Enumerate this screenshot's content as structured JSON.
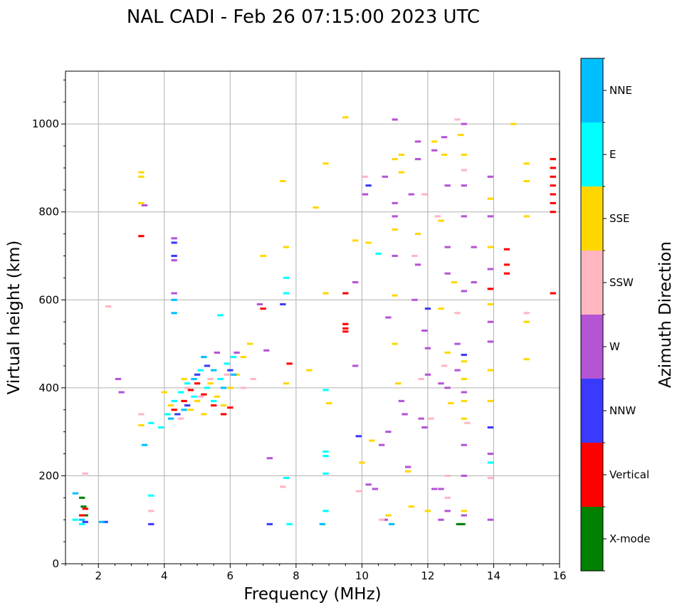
{
  "colors": {
    "X-mode": "#008000",
    "Vertical": "#ff0000",
    "NNW": "#3a3aff",
    "W": "#b455d6",
    "SSW": "#ffb6c1",
    "SSE": "#ffd700",
    "E": "#00ffff",
    "NNE": "#00bfff"
  },
  "chart_data": {
    "type": "scatter",
    "title": "NAL CADI - Feb 26 07:15:00 2023 UTC",
    "xlabel": "Frequency (MHz)",
    "ylabel": "Virtual height (km)",
    "xlim": [
      1,
      16
    ],
    "ylim": [
      0,
      1120
    ],
    "xticks": [
      2,
      4,
      6,
      8,
      10,
      12,
      14,
      16
    ],
    "yticks": [
      0,
      200,
      400,
      600,
      800,
      1000
    ],
    "grid": true,
    "colorbar": {
      "label": "Azimuth Direction",
      "categories": [
        "X-mode",
        "Vertical",
        "NNW",
        "W",
        "SSW",
        "SSE",
        "E",
        "NNE"
      ]
    },
    "series": [
      {
        "name": "X-mode",
        "points": [
          [
            1.5,
            150
          ],
          [
            1.55,
            130
          ],
          [
            1.6,
            110
          ],
          [
            12.95,
            90
          ],
          [
            13.05,
            90
          ]
        ]
      },
      {
        "name": "Vertical",
        "points": [
          [
            1.5,
            110
          ],
          [
            1.6,
            125
          ],
          [
            3.3,
            745
          ],
          [
            4.3,
            350
          ],
          [
            4.6,
            370
          ],
          [
            4.8,
            395
          ],
          [
            5.0,
            410
          ],
          [
            5.2,
            385
          ],
          [
            5.5,
            360
          ],
          [
            5.8,
            340
          ],
          [
            6.0,
            355
          ],
          [
            7.0,
            580
          ],
          [
            7.8,
            455
          ],
          [
            9.5,
            615
          ],
          [
            9.5,
            545
          ],
          [
            9.5,
            535
          ],
          [
            9.5,
            528
          ],
          [
            13.9,
            625
          ],
          [
            14.4,
            715
          ],
          [
            14.4,
            680
          ],
          [
            14.4,
            660
          ],
          [
            15.8,
            920
          ],
          [
            15.8,
            900
          ],
          [
            15.8,
            880
          ],
          [
            15.8,
            860
          ],
          [
            15.8,
            840
          ],
          [
            15.8,
            820
          ],
          [
            15.8,
            800
          ],
          [
            15.8,
            615
          ]
        ]
      },
      {
        "name": "NNW",
        "points": [
          [
            1.6,
            95
          ],
          [
            2.2,
            95
          ],
          [
            3.6,
            90
          ],
          [
            4.3,
            730
          ],
          [
            4.3,
            700
          ],
          [
            4.4,
            340
          ],
          [
            4.7,
            360
          ],
          [
            5.0,
            430
          ],
          [
            5.3,
            450
          ],
          [
            6.0,
            440
          ],
          [
            7.2,
            90
          ],
          [
            7.6,
            590
          ],
          [
            9.9,
            290
          ],
          [
            10.2,
            860
          ],
          [
            12.0,
            580
          ],
          [
            13.1,
            475
          ],
          [
            13.9,
            310
          ]
        ]
      },
      {
        "name": "W",
        "points": [
          [
            2.6,
            420
          ],
          [
            2.7,
            390
          ],
          [
            3.4,
            815
          ],
          [
            4.3,
            740
          ],
          [
            4.3,
            690
          ],
          [
            4.3,
            615
          ],
          [
            5.6,
            480
          ],
          [
            6.2,
            480
          ],
          [
            6.9,
            590
          ],
          [
            7.1,
            485
          ],
          [
            7.2,
            240
          ],
          [
            9.8,
            640
          ],
          [
            9.8,
            450
          ],
          [
            10.1,
            840
          ],
          [
            10.2,
            180
          ],
          [
            10.4,
            170
          ],
          [
            10.6,
            270
          ],
          [
            10.7,
            880
          ],
          [
            10.7,
            100
          ],
          [
            10.8,
            560
          ],
          [
            10.8,
            300
          ],
          [
            11.0,
            1010
          ],
          [
            11.0,
            820
          ],
          [
            11.0,
            790
          ],
          [
            11.0,
            700
          ],
          [
            11.2,
            370
          ],
          [
            11.3,
            340
          ],
          [
            11.4,
            220
          ],
          [
            11.5,
            840
          ],
          [
            11.6,
            600
          ],
          [
            11.7,
            960
          ],
          [
            11.7,
            920
          ],
          [
            11.7,
            680
          ],
          [
            11.8,
            330
          ],
          [
            11.9,
            530
          ],
          [
            11.9,
            310
          ],
          [
            12.0,
            490
          ],
          [
            12.0,
            430
          ],
          [
            12.2,
            940
          ],
          [
            12.2,
            170
          ],
          [
            12.4,
            170
          ],
          [
            12.4,
            410
          ],
          [
            12.4,
            100
          ],
          [
            12.5,
            970
          ],
          [
            12.6,
            860
          ],
          [
            12.6,
            720
          ],
          [
            12.6,
            660
          ],
          [
            12.6,
            400
          ],
          [
            12.6,
            120
          ],
          [
            12.9,
            500
          ],
          [
            12.9,
            440
          ],
          [
            13.1,
            1000
          ],
          [
            13.1,
            860
          ],
          [
            13.1,
            790
          ],
          [
            13.1,
            620
          ],
          [
            13.1,
            390
          ],
          [
            13.1,
            270
          ],
          [
            13.1,
            200
          ],
          [
            13.1,
            110
          ],
          [
            13.4,
            720
          ],
          [
            13.4,
            640
          ],
          [
            13.9,
            880
          ],
          [
            13.9,
            790
          ],
          [
            13.9,
            670
          ],
          [
            13.9,
            550
          ],
          [
            13.9,
            505
          ],
          [
            13.9,
            250
          ],
          [
            13.9,
            100
          ]
        ]
      },
      {
        "name": "SSW",
        "points": [
          [
            1.6,
            205
          ],
          [
            2.3,
            585
          ],
          [
            3.3,
            340
          ],
          [
            3.6,
            120
          ],
          [
            4.5,
            330
          ],
          [
            4.7,
            400
          ],
          [
            5.1,
            380
          ],
          [
            5.4,
            420
          ],
          [
            5.9,
            430
          ],
          [
            6.4,
            400
          ],
          [
            6.7,
            420
          ],
          [
            7.6,
            175
          ],
          [
            9.9,
            165
          ],
          [
            10.1,
            880
          ],
          [
            10.6,
            100
          ],
          [
            11.6,
            700
          ],
          [
            11.8,
            420
          ],
          [
            11.9,
            840
          ],
          [
            12.1,
            330
          ],
          [
            12.3,
            790
          ],
          [
            12.5,
            450
          ],
          [
            12.6,
            200
          ],
          [
            12.6,
            150
          ],
          [
            12.9,
            1010
          ],
          [
            12.9,
            570
          ],
          [
            13.1,
            895
          ],
          [
            13.2,
            320
          ],
          [
            13.9,
            195
          ],
          [
            15.0,
            570
          ]
        ]
      },
      {
        "name": "SSE",
        "points": [
          [
            3.3,
            890
          ],
          [
            3.3,
            880
          ],
          [
            3.3,
            820
          ],
          [
            3.3,
            315
          ],
          [
            4.0,
            390
          ],
          [
            4.2,
            360
          ],
          [
            4.6,
            420
          ],
          [
            4.8,
            350
          ],
          [
            5.0,
            370
          ],
          [
            5.2,
            340
          ],
          [
            5.4,
            410
          ],
          [
            5.6,
            380
          ],
          [
            5.8,
            360
          ],
          [
            6.0,
            400
          ],
          [
            6.2,
            430
          ],
          [
            6.4,
            470
          ],
          [
            6.6,
            500
          ],
          [
            7.0,
            700
          ],
          [
            7.6,
            870
          ],
          [
            7.7,
            720
          ],
          [
            7.7,
            410
          ],
          [
            8.4,
            440
          ],
          [
            8.6,
            810
          ],
          [
            8.9,
            910
          ],
          [
            8.9,
            615
          ],
          [
            9.0,
            365
          ],
          [
            9.5,
            1015
          ],
          [
            9.8,
            735
          ],
          [
            10.0,
            230
          ],
          [
            10.2,
            730
          ],
          [
            10.3,
            280
          ],
          [
            10.8,
            110
          ],
          [
            11.0,
            920
          ],
          [
            11.0,
            760
          ],
          [
            11.0,
            610
          ],
          [
            11.0,
            500
          ],
          [
            11.1,
            410
          ],
          [
            11.2,
            930
          ],
          [
            11.2,
            890
          ],
          [
            11.4,
            210
          ],
          [
            11.5,
            130
          ],
          [
            11.7,
            750
          ],
          [
            12.0,
            120
          ],
          [
            12.2,
            960
          ],
          [
            12.4,
            780
          ],
          [
            12.4,
            580
          ],
          [
            12.5,
            930
          ],
          [
            12.6,
            480
          ],
          [
            12.7,
            365
          ],
          [
            12.8,
            640
          ],
          [
            13.0,
            975
          ],
          [
            13.1,
            930
          ],
          [
            13.1,
            460
          ],
          [
            13.1,
            420
          ],
          [
            13.1,
            370
          ],
          [
            13.1,
            330
          ],
          [
            13.1,
            120
          ],
          [
            13.9,
            830
          ],
          [
            13.9,
            720
          ],
          [
            13.9,
            590
          ],
          [
            13.9,
            440
          ],
          [
            13.9,
            370
          ],
          [
            14.6,
            1000
          ],
          [
            15.0,
            910
          ],
          [
            15.0,
            870
          ],
          [
            15.0,
            790
          ],
          [
            15.0,
            550
          ],
          [
            15.0,
            465
          ]
        ]
      },
      {
        "name": "E",
        "points": [
          [
            1.3,
            100
          ],
          [
            1.5,
            90
          ],
          [
            3.6,
            155
          ],
          [
            3.6,
            320
          ],
          [
            3.9,
            310
          ],
          [
            4.1,
            340
          ],
          [
            4.3,
            370
          ],
          [
            4.5,
            390
          ],
          [
            4.7,
            410
          ],
          [
            4.9,
            380
          ],
          [
            5.1,
            440
          ],
          [
            5.3,
            400
          ],
          [
            5.5,
            370
          ],
          [
            5.7,
            420
          ],
          [
            5.9,
            455
          ],
          [
            6.1,
            470
          ],
          [
            5.7,
            565
          ],
          [
            7.7,
            650
          ],
          [
            7.7,
            615
          ],
          [
            7.7,
            195
          ],
          [
            7.8,
            90
          ],
          [
            8.9,
            395
          ],
          [
            8.9,
            255
          ],
          [
            8.9,
            245
          ],
          [
            8.9,
            205
          ],
          [
            8.9,
            120
          ],
          [
            10.5,
            705
          ],
          [
            13.9,
            230
          ]
        ]
      },
      {
        "name": "NNE",
        "points": [
          [
            1.3,
            160
          ],
          [
            1.5,
            100
          ],
          [
            2.1,
            95
          ],
          [
            3.4,
            270
          ],
          [
            4.3,
            600
          ],
          [
            4.3,
            570
          ],
          [
            4.2,
            330
          ],
          [
            4.6,
            350
          ],
          [
            4.9,
            420
          ],
          [
            5.2,
            470
          ],
          [
            5.5,
            440
          ],
          [
            5.8,
            400
          ],
          [
            6.1,
            430
          ],
          [
            8.8,
            90
          ],
          [
            10.9,
            90
          ]
        ]
      }
    ]
  }
}
